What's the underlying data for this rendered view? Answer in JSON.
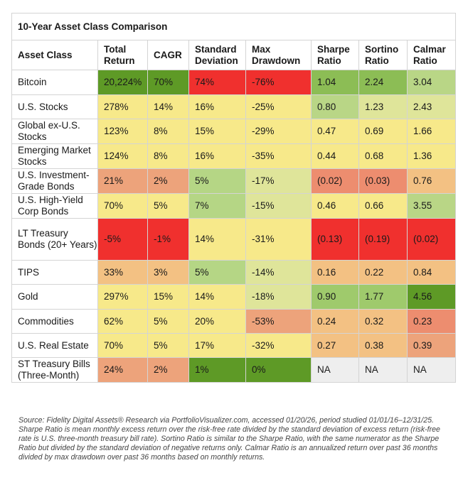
{
  "title": "10-Year Asset Class Comparison",
  "headers": [
    "Asset Class",
    "Total Return",
    "CAGR",
    "Standard Deviation",
    "Max Drawdown",
    "Sharpe Ratio",
    "Sortino Ratio",
    "Calmar Ratio"
  ],
  "rows": [
    {
      "asset": "Bitcoin",
      "cells": [
        {
          "v": "20,224%",
          "c": "#5e9a26"
        },
        {
          "v": "70%",
          "c": "#5e9a26"
        },
        {
          "v": "74%",
          "c": "#f0302e"
        },
        {
          "v": "-76%",
          "c": "#f0302e"
        },
        {
          "v": "1.04",
          "c": "#8cbd55"
        },
        {
          "v": "2.24",
          "c": "#8cbd55"
        },
        {
          "v": "3.04",
          "c": "#b9d686"
        }
      ]
    },
    {
      "asset": "U.S. Stocks",
      "cells": [
        {
          "v": "278%",
          "c": "#f7e98a"
        },
        {
          "v": "14%",
          "c": "#f7e98a"
        },
        {
          "v": "16%",
          "c": "#f7e98a"
        },
        {
          "v": "-25%",
          "c": "#f7e98a"
        },
        {
          "v": "0.80",
          "c": "#b9d686"
        },
        {
          "v": "1.23",
          "c": "#dfe59a"
        },
        {
          "v": "2.43",
          "c": "#dfe59a"
        }
      ]
    },
    {
      "asset": "Global ex-U.S. Stocks",
      "cells": [
        {
          "v": "123%",
          "c": "#f7e98a"
        },
        {
          "v": "8%",
          "c": "#f7e98a"
        },
        {
          "v": "15%",
          "c": "#f7e98a"
        },
        {
          "v": "-29%",
          "c": "#f7e98a"
        },
        {
          "v": "0.47",
          "c": "#f7e98a"
        },
        {
          "v": "0.69",
          "c": "#f7e98a"
        },
        {
          "v": "1.66",
          "c": "#f7e98a"
        }
      ]
    },
    {
      "asset": "Emerging Market Stocks",
      "cells": [
        {
          "v": "124%",
          "c": "#f7e98a"
        },
        {
          "v": "8%",
          "c": "#f7e98a"
        },
        {
          "v": "16%",
          "c": "#f7e98a"
        },
        {
          "v": "-35%",
          "c": "#f7e98a"
        },
        {
          "v": "0.44",
          "c": "#f7e98a"
        },
        {
          "v": "0.68",
          "c": "#f7e98a"
        },
        {
          "v": "1.36",
          "c": "#f7e98a"
        }
      ]
    },
    {
      "asset": "U.S. Investment-Grade Bonds",
      "cells": [
        {
          "v": "21%",
          "c": "#eda37b"
        },
        {
          "v": "2%",
          "c": "#eda37b"
        },
        {
          "v": "5%",
          "c": "#b5d685"
        },
        {
          "v": "-17%",
          "c": "#dfe59a"
        },
        {
          "v": "(0.02)",
          "c": "#ed8d6f"
        },
        {
          "v": "(0.03)",
          "c": "#ed8d6f"
        },
        {
          "v": "0.76",
          "c": "#f3c183"
        }
      ]
    },
    {
      "asset": "U.S. High-Yield Corp Bonds",
      "cells": [
        {
          "v": "70%",
          "c": "#f7e98a"
        },
        {
          "v": "5%",
          "c": "#f7e98a"
        },
        {
          "v": "7%",
          "c": "#b5d685"
        },
        {
          "v": "-15%",
          "c": "#dfe59a"
        },
        {
          "v": "0.46",
          "c": "#f7e98a"
        },
        {
          "v": "0.66",
          "c": "#f7e98a"
        },
        {
          "v": "3.55",
          "c": "#b9d686"
        }
      ]
    },
    {
      "asset": "LT Treasury Bonds (20+ Years)",
      "cells": [
        {
          "v": "-5%",
          "c": "#f0302e"
        },
        {
          "v": "-1%",
          "c": "#f0302e"
        },
        {
          "v": "14%",
          "c": "#f7e98a"
        },
        {
          "v": "-31%",
          "c": "#f7e98a"
        },
        {
          "v": "(0.13)",
          "c": "#f0302e"
        },
        {
          "v": "(0.19)",
          "c": "#f0302e"
        },
        {
          "v": "(0.02)",
          "c": "#f0302e"
        }
      ]
    },
    {
      "asset": "TIPS",
      "cells": [
        {
          "v": "33%",
          "c": "#f3c183"
        },
        {
          "v": "3%",
          "c": "#f3c183"
        },
        {
          "v": "5%",
          "c": "#b5d685"
        },
        {
          "v": "-14%",
          "c": "#dfe59a"
        },
        {
          "v": "0.16",
          "c": "#f3c183"
        },
        {
          "v": "0.22",
          "c": "#f3c183"
        },
        {
          "v": "0.84",
          "c": "#f3c183"
        }
      ]
    },
    {
      "asset": "Gold",
      "cells": [
        {
          "v": "297%",
          "c": "#f7e98a"
        },
        {
          "v": "15%",
          "c": "#f7e98a"
        },
        {
          "v": "14%",
          "c": "#f7e98a"
        },
        {
          "v": "-18%",
          "c": "#dfe59a"
        },
        {
          "v": "0.90",
          "c": "#9fca6c"
        },
        {
          "v": "1.77",
          "c": "#9fca6c"
        },
        {
          "v": "4.56",
          "c": "#5e9a26"
        }
      ]
    },
    {
      "asset": "Commodities",
      "cells": [
        {
          "v": "62%",
          "c": "#f7e98a"
        },
        {
          "v": "5%",
          "c": "#f7e98a"
        },
        {
          "v": "20%",
          "c": "#f7e98a"
        },
        {
          "v": "-53%",
          "c": "#eda37b"
        },
        {
          "v": "0.24",
          "c": "#f3c183"
        },
        {
          "v": "0.32",
          "c": "#f3c183"
        },
        {
          "v": "0.23",
          "c": "#ed8d6f"
        }
      ]
    },
    {
      "asset": "U.S. Real Estate",
      "cells": [
        {
          "v": "70%",
          "c": "#f7e98a"
        },
        {
          "v": "5%",
          "c": "#f7e98a"
        },
        {
          "v": "17%",
          "c": "#f7e98a"
        },
        {
          "v": "-32%",
          "c": "#f7e98a"
        },
        {
          "v": "0.27",
          "c": "#f3c183"
        },
        {
          "v": "0.38",
          "c": "#f3c183"
        },
        {
          "v": "0.39",
          "c": "#eda37b"
        }
      ]
    },
    {
      "asset": "ST Treasury Bills (Three-Month)",
      "cells": [
        {
          "v": "24%",
          "c": "#eda37b"
        },
        {
          "v": "2%",
          "c": "#eda37b"
        },
        {
          "v": "1%",
          "c": "#5e9a26"
        },
        {
          "v": "0%",
          "c": "#5e9a26"
        },
        {
          "v": "NA",
          "c": "#eeeeee"
        },
        {
          "v": "NA",
          "c": "#eeeeee"
        },
        {
          "v": "NA",
          "c": "#eeeeee"
        }
      ]
    }
  ],
  "footnote": "Source: Fidelity Digital Assets® Research via PortfolioVisualizer.com, accessed 01/20/26, period studied 01/01/16–12/31/25. Sharpe Ratio is mean monthly excess return over the risk-free rate divided by the standard deviation of excess return (risk-free rate is U.S. three-month treasury bill rate). Sortino Ratio is similar to the Sharpe Ratio, with the same numerator as the Sharpe Ratio but divided by the standard deviation of negative returns only. Calmar Ratio is an annualized return over past 36 months divided by max drawdown over past 36 months based on monthly returns."
}
